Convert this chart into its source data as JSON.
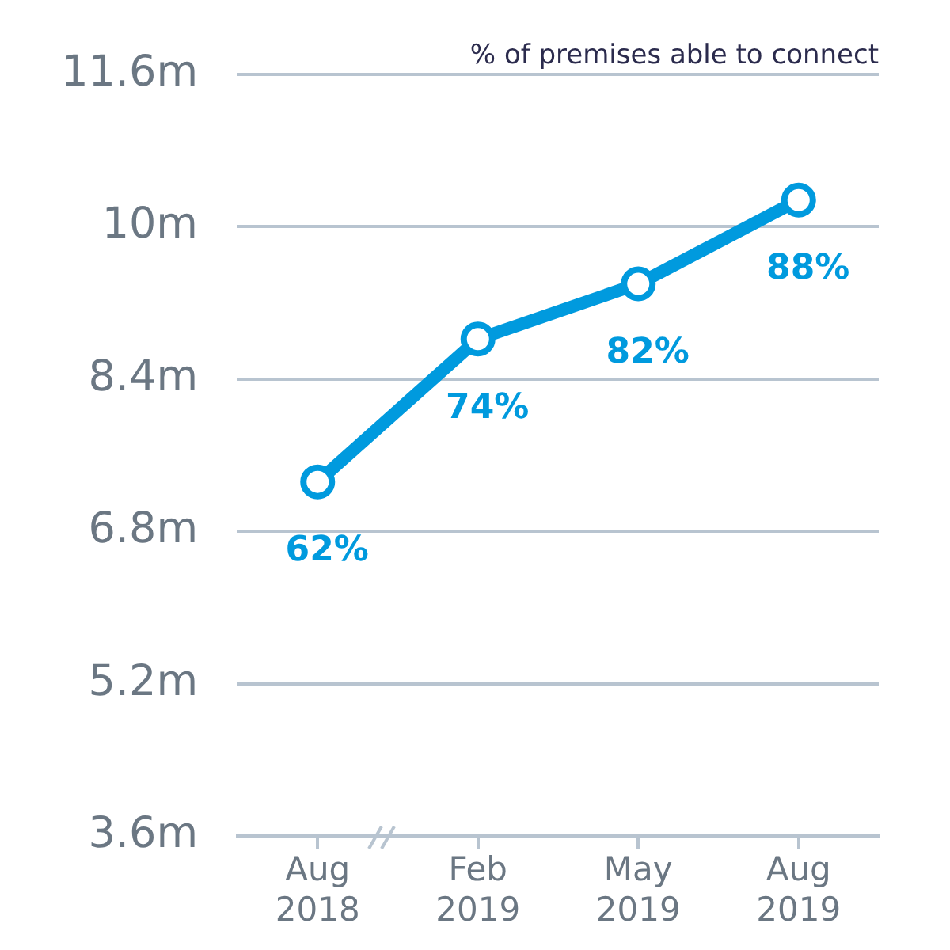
{
  "chart_data": {
    "type": "line",
    "categories": [
      "Aug 2018",
      "Feb 2019",
      "May 2019",
      "Aug 2019"
    ],
    "series": [
      {
        "color": "#009ade",
        "values": [
          7.32,
          8.82,
          9.4,
          10.28
        ]
      }
    ],
    "ylim": [
      3.6,
      11.6
    ],
    "yticks": [
      {
        "value": 3.6,
        "label": "3.6m"
      },
      {
        "value": 5.2,
        "label": "5.2m"
      },
      {
        "value": 6.8,
        "label": "6.8m"
      },
      {
        "value": 8.4,
        "label": "8.4m"
      },
      {
        "value": 10,
        "label": "10m"
      },
      {
        "value": 11.6,
        "label": "11.6m"
      }
    ],
    "grid": "y",
    "legend": false,
    "marker": "circle",
    "line_style": "solid",
    "annotations": [
      "% of premises able to connect",
      {
        "text": "62%",
        "x": "Aug 2018",
        "y": 7.32
      },
      {
        "text": "74%",
        "x": "Feb 2019",
        "y": 8.82
      },
      {
        "text": "82%",
        "x": "May 2019",
        "y": 9.4
      },
      {
        "text": "88%",
        "x": "Aug 2019",
        "y": 10.28
      }
    ]
  }
}
